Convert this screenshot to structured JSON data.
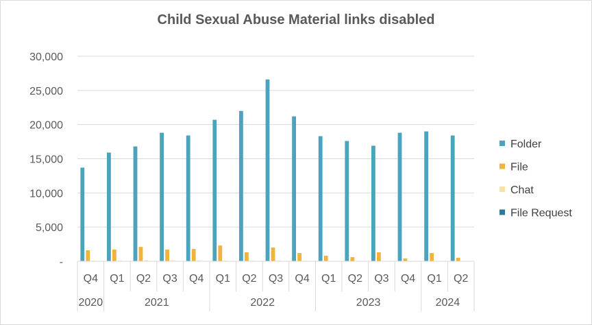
{
  "chart_data": {
    "type": "bar",
    "title": "Child Sexual Abuse Material links disabled",
    "xlabel": "",
    "ylabel": "",
    "ylim": [
      0,
      30000
    ],
    "yticks": [
      "-",
      "5,000",
      "10,000",
      "15,000",
      "20,000",
      "25,000",
      "30,000"
    ],
    "grid": true,
    "legend_position": "right",
    "categories": [
      "Q4",
      "Q1",
      "Q2",
      "Q3",
      "Q4",
      "Q1",
      "Q2",
      "Q3",
      "Q4",
      "Q1",
      "Q2",
      "Q3",
      "Q4",
      "Q1",
      "Q2"
    ],
    "years": [
      {
        "label": "2020",
        "count": 1
      },
      {
        "label": "2021",
        "count": 4
      },
      {
        "label": "2022",
        "count": 4
      },
      {
        "label": "2023",
        "count": 4
      },
      {
        "label": "2024",
        "count": 2
      }
    ],
    "series": [
      {
        "name": "Folder",
        "color": "#4BA3BD",
        "values": [
          13700,
          15900,
          16800,
          18800,
          18400,
          20700,
          22000,
          26600,
          21200,
          18300,
          17600,
          16900,
          18800,
          19000,
          18400
        ]
      },
      {
        "name": "File",
        "color": "#F0B43C",
        "values": [
          1600,
          1700,
          2100,
          1700,
          1800,
          2300,
          1300,
          2000,
          1200,
          800,
          600,
          1300,
          400,
          1200,
          500
        ]
      },
      {
        "name": "Chat",
        "color": "#F8E3A6",
        "values": [
          100,
          100,
          150,
          100,
          100,
          100,
          80,
          100,
          80,
          50,
          50,
          50,
          50,
          50,
          50
        ]
      },
      {
        "name": "File Request",
        "color": "#2E7A96",
        "values": [
          20,
          20,
          20,
          20,
          20,
          20,
          20,
          20,
          20,
          20,
          20,
          20,
          20,
          20,
          20
        ]
      }
    ]
  }
}
